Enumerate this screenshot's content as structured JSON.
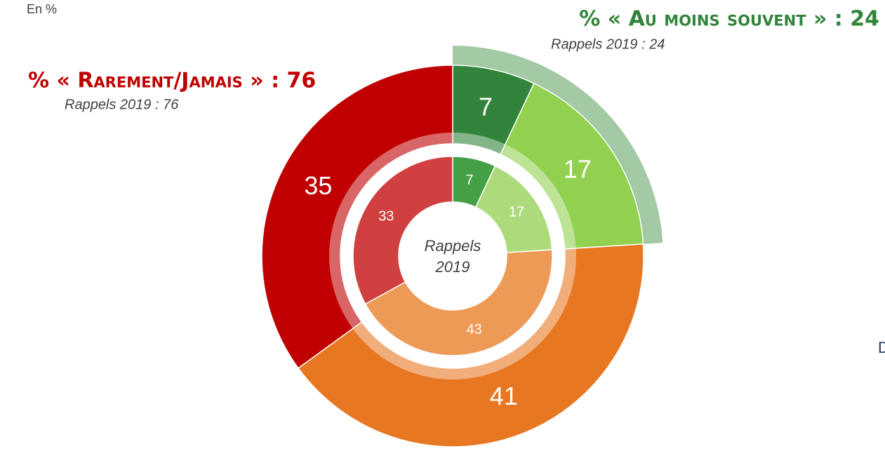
{
  "chart_data": {
    "type": "donut",
    "subtitle": "En %",
    "center_label": [
      "Rappels",
      "2019"
    ],
    "annotations": [
      {
        "text": "% « Au moins souvent » : 24",
        "color": "#31843a"
      },
      {
        "text": "Rappels 2019 : 24"
      },
      {
        "text": "% « Rarement/Jamais » : 76",
        "color": "#c00000"
      },
      {
        "text": "Rappels 2019 : 76"
      },
      {
        "text": "D",
        "color": "#1f3864"
      }
    ],
    "series": [
      {
        "ring": "outer",
        "values": [
          7,
          17,
          41,
          35
        ],
        "colors": [
          "#31843a",
          "#92d050",
          "#e87722",
          "#c00000"
        ]
      },
      {
        "ring": "inner",
        "values": [
          7,
          17,
          43,
          33
        ],
        "colors": [
          "#43a047",
          "#addb7c",
          "#ee9a57",
          "#d04040"
        ]
      }
    ]
  }
}
